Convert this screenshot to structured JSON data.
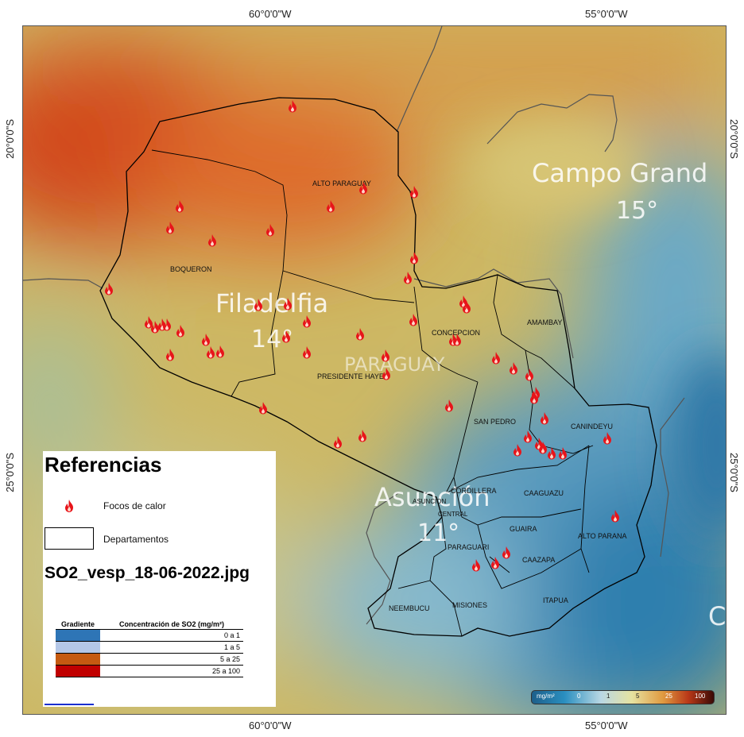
{
  "coords": {
    "top_left": "60°0'0\"W",
    "top_right": "55°0'0\"W",
    "bottom_left": "60°0'0\"W",
    "bottom_right": "55°0'0\"W",
    "left_upper": "20°0'0\"S",
    "left_lower": "25°0'0\"S",
    "right_upper": "20°0'0\"S",
    "right_lower": "25°0'0\"S"
  },
  "map": {
    "departments": [
      "ALTO PARAGUAY",
      "BOQUERON",
      "PRESIDENTE HAYES",
      "CONCEPCION",
      "AMAMBAY",
      "SAN PEDRO",
      "CANINDEYU",
      "CORDILLERA",
      "ASUNCION",
      "CENTRAL",
      "CAAGUAZU",
      "GUAIRA",
      "ALTO PARANA",
      "PARAGUARI",
      "CAAZAPA",
      "NEEMBUCU",
      "MISIONES",
      "ITAPUA"
    ],
    "basemap_labels": {
      "campo_grande": "Campo Grand",
      "campo_grande_temp": "15°",
      "filadelfia": "Filadelfia",
      "filadelfia_temp": "14°",
      "paraguay": "PARAGUAY",
      "asuncion": "Asunción",
      "asuncion_temp": "11°",
      "edge_letter": "C"
    }
  },
  "legend": {
    "title": "Referencias",
    "fire_label": "Focos de calor",
    "dept_label": "Departamentos",
    "file_name": "SO2_vesp_18-06-2022.jpg",
    "table": {
      "col1": "Gradiente",
      "col2": "Concentración de SO2 (mg/m²)",
      "rows": [
        {
          "color": "#2e75b6",
          "label": "0 a 1"
        },
        {
          "color": "#b4c7e7",
          "label": "1 a 5"
        },
        {
          "color": "#c55a11",
          "label": "5 a 25"
        },
        {
          "color": "#c00000",
          "label": "25 a 100"
        }
      ]
    }
  },
  "colorbar": {
    "unit": "mg/m²",
    "ticks": [
      "0",
      "1",
      "5",
      "25",
      "100"
    ]
  }
}
